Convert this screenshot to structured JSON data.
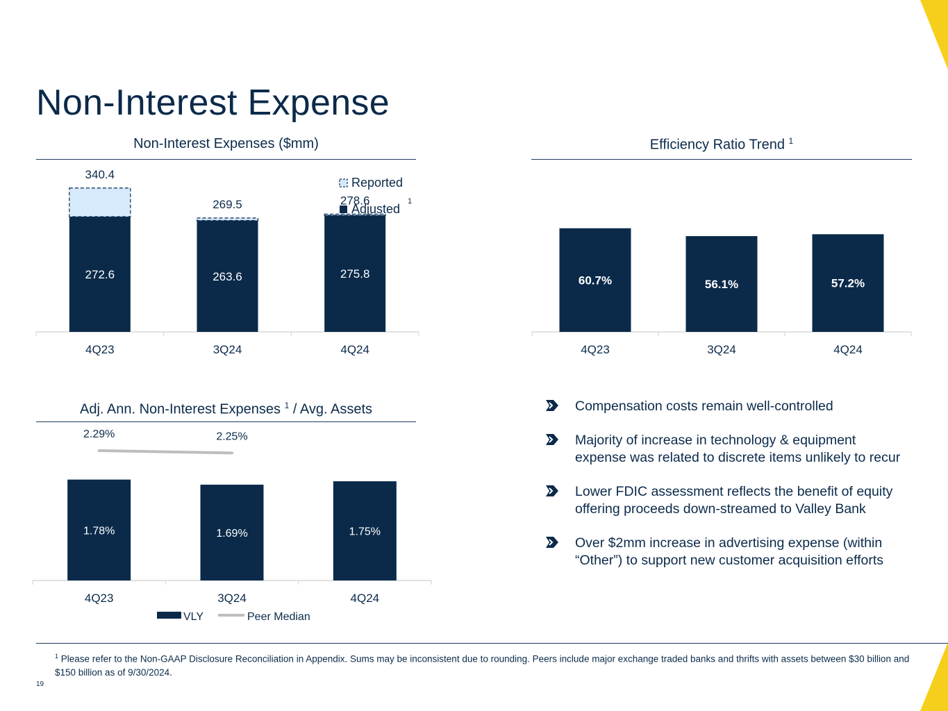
{
  "title": "Non-Interest Expense",
  "colors": {
    "navy": "#0b2a4a",
    "light_blue": "#d6eafc",
    "gray": "#bdbdbd",
    "gold": "#f5cf1b"
  },
  "charts": {
    "nie": {
      "title": "Non-Interest Expenses ($mm)",
      "legend": {
        "reported": "Reported",
        "adjusted": "Adjusted",
        "adjusted_sup": "1"
      }
    },
    "eff": {
      "title": "Efficiency Ratio Trend",
      "title_sup": "1"
    },
    "assets": {
      "title_pre": "Adj. Ann. Non-Interest Expenses",
      "title_sup": "1",
      "title_post": "/ Avg. Assets",
      "legend": {
        "vly": "VLY",
        "peer": "Peer Median"
      }
    }
  },
  "chart_data": [
    {
      "type": "bar",
      "title": "Non-Interest Expenses ($mm)",
      "categories": [
        "4Q23",
        "3Q24",
        "4Q24"
      ],
      "series": [
        {
          "name": "Adjusted",
          "values": [
            272.6,
            263.6,
            275.8
          ],
          "labels": [
            "272.6",
            "263.6",
            "275.8"
          ]
        },
        {
          "name": "Reported",
          "values": [
            340.4,
            269.5,
            278.6
          ],
          "labels": [
            "340.4",
            "269.5",
            "278.6"
          ]
        }
      ],
      "ylim": [
        0,
        345
      ]
    },
    {
      "type": "bar",
      "title": "Efficiency Ratio Trend",
      "categories": [
        "4Q23",
        "3Q24",
        "4Q24"
      ],
      "series": [
        {
          "name": "Efficiency Ratio",
          "values": [
            60.7,
            56.1,
            57.2
          ],
          "labels": [
            "60.7%",
            "56.1%",
            "57.2%"
          ]
        }
      ],
      "ylim": [
        0,
        61
      ]
    },
    {
      "type": "bar",
      "title": "Adj. Ann. Non-Interest Expenses / Avg. Assets",
      "categories": [
        "4Q23",
        "3Q24",
        "4Q24"
      ],
      "series": [
        {
          "name": "VLY",
          "values": [
            1.78,
            1.69,
            1.75
          ],
          "labels": [
            "1.78%",
            "1.69%",
            "1.75%"
          ]
        },
        {
          "name": "Peer Median",
          "type": "line",
          "values": [
            2.29,
            2.25,
            null
          ],
          "labels": [
            "2.29%",
            "2.25%",
            ""
          ]
        }
      ],
      "ylim": [
        0,
        2.45
      ]
    }
  ],
  "bullets": [
    "Compensation costs remain well-controlled",
    "Majority of increase in technology & equipment expense was related to discrete items unlikely to recur",
    "Lower FDIC assessment reflects the benefit of equity offering proceeds down-streamed to Valley Bank",
    "Over $2mm increase in advertising expense (within “Other”) to support new customer acquisition efforts"
  ],
  "footnote": {
    "marker": "1",
    "text": "Please refer to the Non-GAAP Disclosure Reconciliation in Appendix. Sums may be inconsistent due to rounding.  Peers include major exchange traded banks and thrifts with assets between $30 billion and $150 billion as of 9/30/2024."
  },
  "page_number": "19"
}
